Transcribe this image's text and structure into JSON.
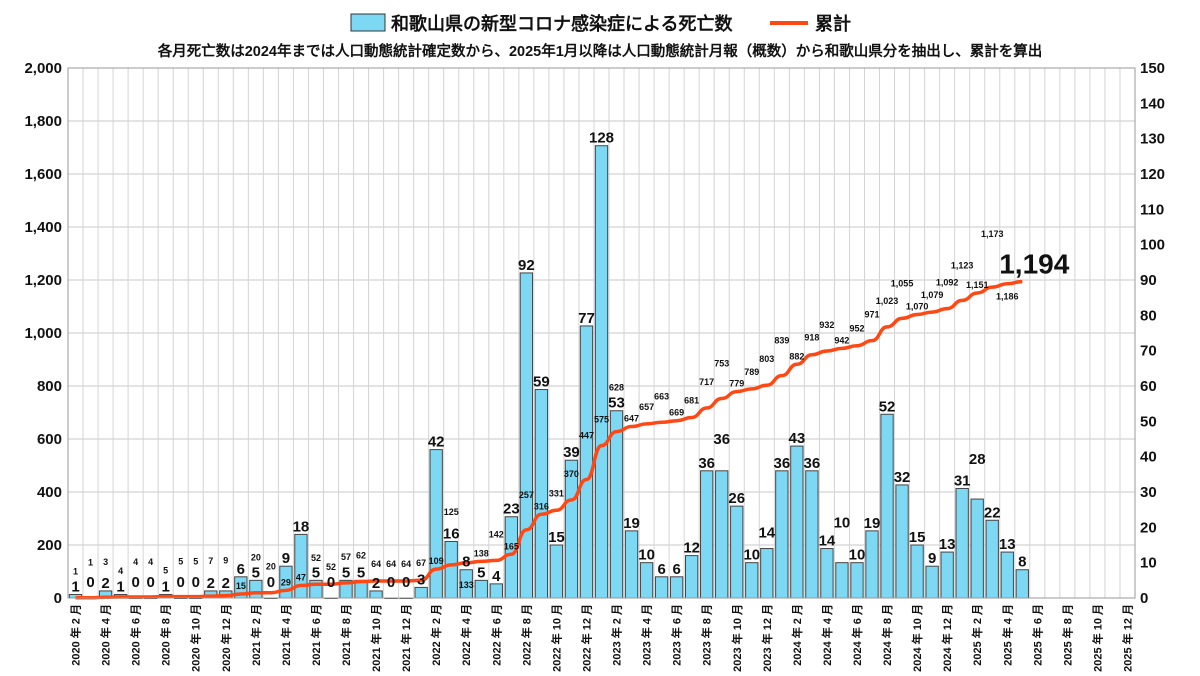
{
  "chart_data": {
    "type": "bar+line",
    "title": "",
    "subtitle": "各月死亡数は2024年までは人口動態統計確定数から、2025年1月以降は人口動態統計月報（概数）から和歌山県分を抽出し、累計を算出",
    "legend": [
      {
        "name": "和歌山県の新型コロナ感染症による死亡数",
        "kind": "bar",
        "color": "#7dd8f4"
      },
      {
        "name": "累計",
        "kind": "line",
        "color": "#ff4814"
      }
    ],
    "legend_position": "top",
    "grid": true,
    "months": [
      "2020-02",
      "2020-03",
      "2020-04",
      "2020-05",
      "2020-06",
      "2020-07",
      "2020-08",
      "2020-09",
      "2020-10",
      "2020-11",
      "2020-12",
      "2021-01",
      "2021-02",
      "2021-03",
      "2021-04",
      "2021-05",
      "2021-06",
      "2021-07",
      "2021-08",
      "2021-09",
      "2021-10",
      "2021-11",
      "2021-12",
      "2022-01",
      "2022-02",
      "2022-03",
      "2022-04",
      "2022-05",
      "2022-06",
      "2022-07",
      "2022-08",
      "2022-09",
      "2022-10",
      "2022-11",
      "2022-12",
      "2023-01",
      "2023-02",
      "2023-03",
      "2023-04",
      "2023-05",
      "2023-06",
      "2023-07",
      "2023-08",
      "2023-09",
      "2023-10",
      "2023-11",
      "2023-12",
      "2024-01",
      "2024-02",
      "2024-03",
      "2024-04",
      "2024-05",
      "2024-06",
      "2024-07",
      "2024-08",
      "2024-09",
      "2024-10",
      "2024-11",
      "2024-12",
      "2025-01",
      "2025-02",
      "2025-03",
      "2025-04",
      "2025-05",
      "2025-06",
      "2025-07",
      "2025-08",
      "2025-09",
      "2025-10",
      "2025-11",
      "2025-12"
    ],
    "x_tick_labels": [
      "2020 年 2 月",
      "2020 年 4 月",
      "2020 年 6 月",
      "2020 年 8 月",
      "2020 年 10 月",
      "2020 年 12 月",
      "2021 年 2 月",
      "2021 年 4 月",
      "2021 年 6 月",
      "2021 年 8 月",
      "2021 年 10 月",
      "2021 年 12 月",
      "2022 年 2 月",
      "2022 年 4 月",
      "2022 年 6 月",
      "2022 年 8 月",
      "2022 年 10 月",
      "2022 年 12 月",
      "2023 年 2 月",
      "2023 年 4 月",
      "2023 年 6 月",
      "2023 年 8 月",
      "2023 年 10 月",
      "2023 年 12 月",
      "2024 年 2 月",
      "2024 年 4 月",
      "2024 年 6 月",
      "2024 年 8 月",
      "2024 年 10 月",
      "2024 年 12 月",
      "2025 年 2 月",
      "2025 年 4 月",
      "2025 年 6 月",
      "2025 年 8 月",
      "2025 年 10 月",
      "2025 年 12 月"
    ],
    "monthly_deaths": [
      1,
      0,
      2,
      1,
      0,
      0,
      1,
      0,
      0,
      2,
      2,
      6,
      5,
      0,
      9,
      18,
      5,
      0,
      5,
      5,
      2,
      0,
      0,
      3,
      42,
      16,
      8,
      5,
      4,
      23,
      92,
      59,
      15,
      39,
      77,
      128,
      53,
      19,
      10,
      6,
      6,
      12,
      36,
      36,
      26,
      10,
      14,
      36,
      43,
      36,
      14,
      10,
      10,
      19,
      52,
      32,
      15,
      9,
      13,
      31,
      28,
      22,
      13,
      8
    ],
    "cumulative": [
      1,
      1,
      3,
      4,
      4,
      4,
      5,
      5,
      5,
      7,
      9,
      15,
      20,
      20,
      29,
      47,
      52,
      52,
      57,
      62,
      64,
      64,
      64,
      67,
      109,
      125,
      133,
      138,
      142,
      165,
      257,
      316,
      331,
      370,
      447,
      575,
      628,
      647,
      657,
      663,
      669,
      681,
      717,
      753,
      779,
      789,
      803,
      839,
      882,
      918,
      932,
      942,
      952,
      971,
      1023,
      1055,
      1070,
      1079,
      1092,
      1123,
      1151,
      1173,
      1186,
      1194
    ],
    "final_cumulative_label": "1,194",
    "y_left": {
      "label": "",
      "range": [
        0,
        2000
      ],
      "ticks": [
        "0",
        "200",
        "400",
        "600",
        "800",
        "1,000",
        "1,200",
        "1,400",
        "1,600",
        "1,800",
        "2,000"
      ]
    },
    "y_right": {
      "label": "",
      "range": [
        0,
        150
      ],
      "ticks": [
        "0",
        "10",
        "20",
        "30",
        "40",
        "50",
        "60",
        "70",
        "80",
        "90",
        "100",
        "110",
        "120",
        "130",
        "140",
        "150"
      ]
    }
  }
}
